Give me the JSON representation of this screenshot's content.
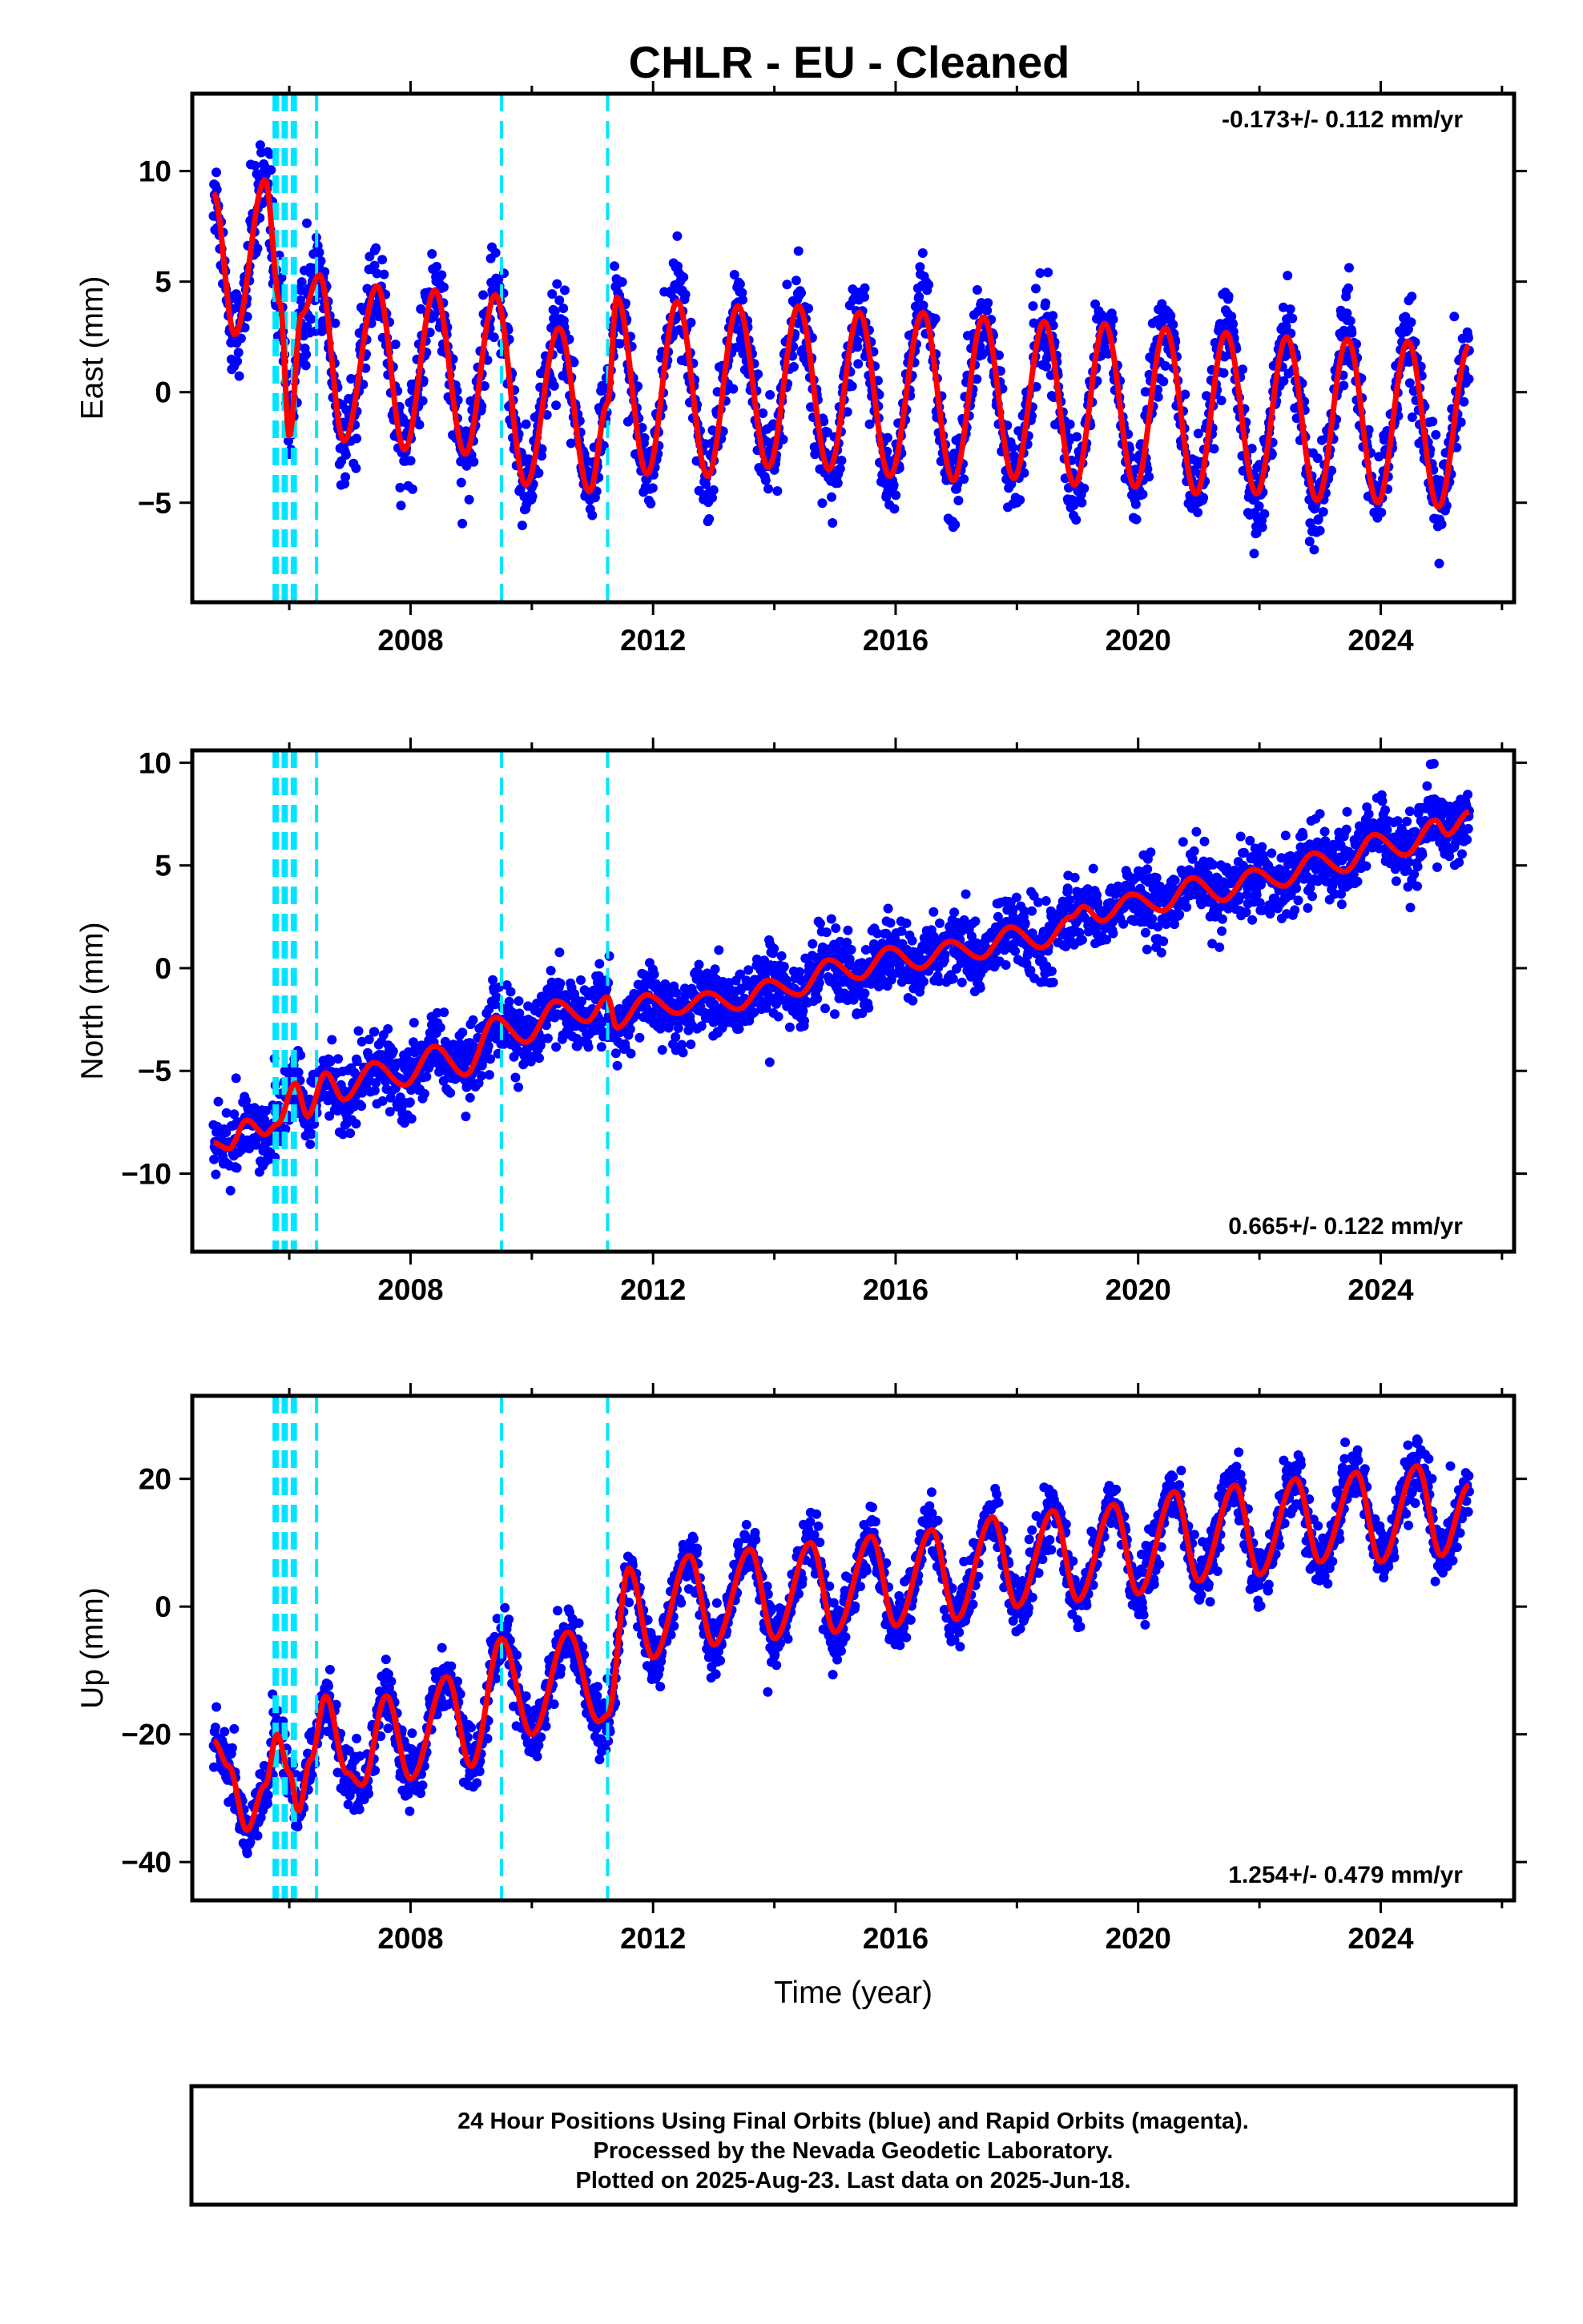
{
  "title": "CHLR  - EU - Cleaned",
  "colors": {
    "points": "#0000ff",
    "fit": "#ff0000",
    "offsets": "#00e5ff",
    "frame": "#000000"
  },
  "offsets_years": [
    2005.75,
    2005.8,
    2005.9,
    2005.95,
    2006.05,
    2006.1,
    2006.45,
    2009.5,
    2011.25
  ],
  "footer": {
    "line1": "24 Hour Positions Using Final Orbits (blue) and Rapid Orbits (magenta).",
    "line2": "Processed by the Nevada Geodetic Laboratory.",
    "line3": "Plotted on 2025-Aug-23. Last data on 2025-Jun-18."
  },
  "chart_data": [
    {
      "type": "scatter",
      "ylabel": "East (mm)",
      "xlabel": "",
      "xlim": [
        2004.4,
        2026.2
      ],
      "ylim": [
        -9.5,
        13.5
      ],
      "xticks": [
        2008,
        2012,
        2016,
        2020,
        2024
      ],
      "yticks": [
        -5,
        0,
        5,
        10
      ],
      "rate_text": "-0.173+/- 0.112 mm/yr",
      "rate_position": "top-right",
      "date_range": [
        2004.75,
        2025.46
      ],
      "noise": 1.6,
      "fit": {
        "points": [
          [
            2004.75,
            9.0
          ],
          [
            2005.1,
            2.6
          ],
          [
            2005.6,
            9.6
          ],
          [
            2005.85,
            4.0
          ],
          [
            2006.0,
            -2.0
          ],
          [
            2006.2,
            3.5
          ],
          [
            2006.5,
            5.3
          ],
          [
            2006.9,
            -2.2
          ],
          [
            2007.45,
            4.8
          ],
          [
            2007.9,
            -2.6
          ],
          [
            2008.4,
            4.6
          ],
          [
            2008.9,
            -2.8
          ],
          [
            2009.4,
            4.4
          ],
          [
            2009.9,
            -4.2
          ],
          [
            2010.45,
            2.9
          ],
          [
            2010.95,
            -4.5
          ],
          [
            2011.25,
            -0.5
          ],
          [
            2011.4,
            4.3
          ],
          [
            2011.9,
            -3.7
          ],
          [
            2012.4,
            4.1
          ],
          [
            2012.9,
            -3.8
          ],
          [
            2013.4,
            3.9
          ],
          [
            2013.9,
            -3.4
          ],
          [
            2014.4,
            3.9
          ],
          [
            2014.9,
            -3.5
          ],
          [
            2015.4,
            3.6
          ],
          [
            2015.9,
            -3.8
          ],
          [
            2016.45,
            3.6
          ],
          [
            2016.95,
            -4.0
          ],
          [
            2017.45,
            3.4
          ],
          [
            2017.95,
            -3.9
          ],
          [
            2018.45,
            3.2
          ],
          [
            2018.95,
            -4.2
          ],
          [
            2019.45,
            3.1
          ],
          [
            2019.95,
            -4.3
          ],
          [
            2020.45,
            2.9
          ],
          [
            2020.95,
            -4.6
          ],
          [
            2021.45,
            2.7
          ],
          [
            2021.95,
            -4.6
          ],
          [
            2022.45,
            2.5
          ],
          [
            2022.95,
            -4.9
          ],
          [
            2023.45,
            2.4
          ],
          [
            2023.95,
            -5.0
          ],
          [
            2024.45,
            2.3
          ],
          [
            2024.95,
            -5.2
          ],
          [
            2025.46,
            2.1
          ]
        ]
      }
    },
    {
      "type": "scatter",
      "ylabel": "North (mm)",
      "xlabel": "",
      "xlim": [
        2004.4,
        2026.2
      ],
      "ylim": [
        -13.8,
        10.6
      ],
      "xticks": [
        2008,
        2012,
        2016,
        2020,
        2024
      ],
      "yticks": [
        -10,
        -5,
        0,
        5,
        10
      ],
      "rate_text": "0.665+/- 0.122 mm/yr",
      "rate_position": "bottom-right",
      "date_range": [
        2004.75,
        2025.46
      ],
      "noise": 1.4,
      "fit": {
        "points": [
          [
            2004.75,
            -8.5
          ],
          [
            2005.0,
            -8.8
          ],
          [
            2005.3,
            -7.4
          ],
          [
            2005.6,
            -8.1
          ],
          [
            2005.8,
            -7.6
          ],
          [
            2006.1,
            -5.6
          ],
          [
            2006.3,
            -7.2
          ],
          [
            2006.6,
            -5.1
          ],
          [
            2006.9,
            -6.4
          ],
          [
            2007.4,
            -4.6
          ],
          [
            2007.9,
            -5.7
          ],
          [
            2008.4,
            -3.8
          ],
          [
            2008.9,
            -5.2
          ],
          [
            2009.4,
            -2.4
          ],
          [
            2009.9,
            -3.6
          ],
          [
            2010.4,
            -1.6
          ],
          [
            2010.9,
            -2.6
          ],
          [
            2011.25,
            -1.4
          ],
          [
            2011.4,
            -2.9
          ],
          [
            2011.9,
            -1.3
          ],
          [
            2012.4,
            -2.2
          ],
          [
            2012.9,
            -1.2
          ],
          [
            2013.4,
            -2.0
          ],
          [
            2013.9,
            -0.6
          ],
          [
            2014.4,
            -1.3
          ],
          [
            2014.9,
            0.4
          ],
          [
            2015.4,
            -0.5
          ],
          [
            2015.9,
            1.0
          ],
          [
            2016.4,
            0.0
          ],
          [
            2016.9,
            1.3
          ],
          [
            2017.4,
            0.5
          ],
          [
            2017.9,
            2.0
          ],
          [
            2018.4,
            1.0
          ],
          [
            2018.9,
            2.5
          ],
          [
            2019.1,
            3.0
          ],
          [
            2019.4,
            2.3
          ],
          [
            2019.9,
            3.6
          ],
          [
            2020.4,
            2.8
          ],
          [
            2020.9,
            4.4
          ],
          [
            2021.4,
            3.3
          ],
          [
            2021.9,
            4.8
          ],
          [
            2022.4,
            4.0
          ],
          [
            2022.9,
            5.6
          ],
          [
            2023.4,
            4.7
          ],
          [
            2023.9,
            6.5
          ],
          [
            2024.4,
            5.5
          ],
          [
            2024.9,
            7.2
          ],
          [
            2025.1,
            6.5
          ],
          [
            2025.46,
            7.6
          ]
        ]
      }
    },
    {
      "type": "scatter",
      "ylabel": "Up (mm)",
      "xlabel": "Time (year)",
      "xlim": [
        2004.4,
        2026.2
      ],
      "ylim": [
        -46,
        33
      ],
      "xticks": [
        2008,
        2012,
        2016,
        2020,
        2024
      ],
      "yticks": [
        -40,
        -20,
        0,
        20
      ],
      "rate_text": "1.254+/- 0.479 mm/yr",
      "rate_position": "bottom-right",
      "date_range": [
        2004.75,
        2025.46
      ],
      "noise": 3.8,
      "fit": {
        "points": [
          [
            2004.75,
            -21
          ],
          [
            2005.0,
            -25
          ],
          [
            2005.3,
            -35
          ],
          [
            2005.6,
            -28
          ],
          [
            2005.8,
            -20
          ],
          [
            2006.0,
            -26
          ],
          [
            2006.15,
            -32
          ],
          [
            2006.35,
            -24
          ],
          [
            2006.6,
            -14
          ],
          [
            2006.95,
            -26
          ],
          [
            2007.2,
            -28
          ],
          [
            2007.6,
            -14
          ],
          [
            2008.0,
            -27
          ],
          [
            2008.6,
            -11
          ],
          [
            2009.0,
            -25
          ],
          [
            2009.5,
            -5
          ],
          [
            2010.0,
            -20
          ],
          [
            2010.6,
            -4
          ],
          [
            2011.1,
            -18
          ],
          [
            2011.25,
            -17
          ],
          [
            2011.6,
            6
          ],
          [
            2012.0,
            -8
          ],
          [
            2012.6,
            8
          ],
          [
            2013.0,
            -6
          ],
          [
            2013.6,
            9
          ],
          [
            2014.0,
            -5
          ],
          [
            2014.6,
            10
          ],
          [
            2015.0,
            -4
          ],
          [
            2015.6,
            11
          ],
          [
            2016.0,
            -3
          ],
          [
            2016.6,
            12
          ],
          [
            2017.0,
            -2
          ],
          [
            2017.6,
            14
          ],
          [
            2018.0,
            0
          ],
          [
            2018.6,
            15
          ],
          [
            2019.0,
            1
          ],
          [
            2019.6,
            16
          ],
          [
            2020.0,
            2
          ],
          [
            2020.6,
            18
          ],
          [
            2021.0,
            4
          ],
          [
            2021.6,
            19
          ],
          [
            2022.0,
            5
          ],
          [
            2022.6,
            20
          ],
          [
            2023.0,
            7
          ],
          [
            2023.6,
            21
          ],
          [
            2024.0,
            7
          ],
          [
            2024.6,
            22
          ],
          [
            2025.0,
            8
          ],
          [
            2025.46,
            19
          ]
        ]
      }
    }
  ]
}
